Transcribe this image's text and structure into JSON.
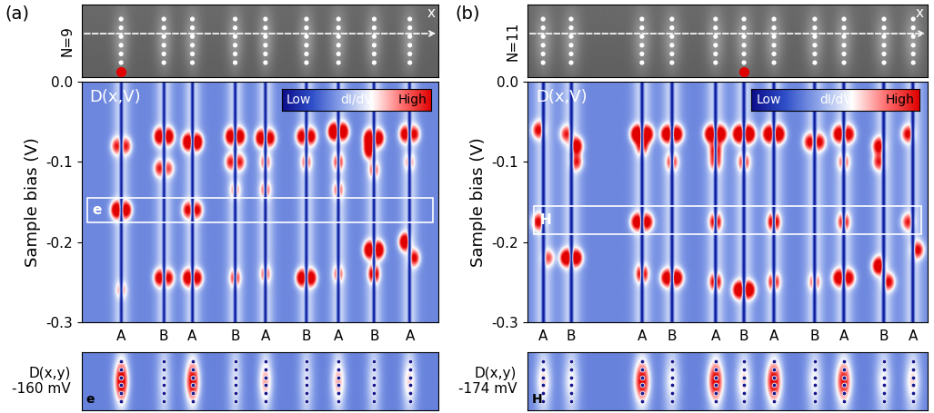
{
  "chart_data": [
    {
      "type": "heatmap",
      "panel": "(a)",
      "chain_count_label": "N=9",
      "x_label": "x",
      "heatmap_label": "D(x,V)",
      "ylabel": "Sample bias (V)",
      "ylim": [
        -0.3,
        0.0
      ],
      "yticks": [
        -0.3,
        -0.2,
        -0.1,
        0.0
      ],
      "xlim": [
        0,
        100
      ],
      "xticks": [
        {
          "value": 11,
          "label": "A"
        },
        {
          "value": 23,
          "label": "B"
        },
        {
          "value": 31,
          "label": "A"
        },
        {
          "value": 43,
          "label": "B"
        },
        {
          "value": 51.5,
          "label": "A"
        },
        {
          "value": 63,
          "label": "B"
        },
        {
          "value": 72,
          "label": "A"
        },
        {
          "value": 82,
          "label": "B"
        },
        {
          "value": 92,
          "label": "A"
        }
      ],
      "colorbar": {
        "low": "Low",
        "label": "dI/dV",
        "high": "High"
      },
      "clim": [
        0,
        1
      ],
      "background": 0.33,
      "peaks": [
        [
          9.5,
          -0.08,
          0.5
        ],
        [
          12.5,
          -0.08,
          0.5
        ],
        [
          9.5,
          -0.16,
          0.9
        ],
        [
          12.5,
          -0.16,
          0.8
        ],
        [
          11,
          -0.26,
          0.3
        ],
        [
          21.5,
          -0.068,
          0.8
        ],
        [
          24.5,
          -0.068,
          0.8
        ],
        [
          21.5,
          -0.108,
          0.5
        ],
        [
          24.5,
          -0.108,
          0.4
        ],
        [
          21.5,
          -0.245,
          0.7
        ],
        [
          24.5,
          -0.245,
          0.6
        ],
        [
          29.5,
          -0.075,
          0.9
        ],
        [
          32.5,
          -0.075,
          0.9
        ],
        [
          29.5,
          -0.16,
          0.6
        ],
        [
          32.5,
          -0.16,
          0.6
        ],
        [
          29.5,
          -0.245,
          0.8
        ],
        [
          32.5,
          -0.245,
          0.7
        ],
        [
          41.5,
          -0.068,
          0.8
        ],
        [
          44.5,
          -0.068,
          0.8
        ],
        [
          41.5,
          -0.1,
          0.5
        ],
        [
          44.5,
          -0.1,
          0.5
        ],
        [
          43,
          -0.135,
          0.3
        ],
        [
          43,
          -0.245,
          0.5
        ],
        [
          50,
          -0.07,
          0.8
        ],
        [
          53,
          -0.07,
          0.7
        ],
        [
          51.5,
          -0.1,
          0.4
        ],
        [
          51.5,
          -0.135,
          0.4
        ],
        [
          51.5,
          -0.24,
          0.4
        ],
        [
          61.5,
          -0.068,
          0.7
        ],
        [
          64.5,
          -0.068,
          0.7
        ],
        [
          63,
          -0.1,
          0.4
        ],
        [
          61.5,
          -0.245,
          0.8
        ],
        [
          64.5,
          -0.245,
          0.8
        ],
        [
          70.5,
          -0.062,
          1.0
        ],
        [
          73.5,
          -0.062,
          0.9
        ],
        [
          72,
          -0.1,
          0.5
        ],
        [
          72,
          -0.135,
          0.4
        ],
        [
          72,
          -0.24,
          0.4
        ],
        [
          80.5,
          -0.07,
          0.9
        ],
        [
          83.5,
          -0.07,
          0.8
        ],
        [
          80.5,
          -0.085,
          0.8
        ],
        [
          82,
          -0.11,
          0.4
        ],
        [
          80.5,
          -0.21,
          0.9
        ],
        [
          83.5,
          -0.21,
          0.9
        ],
        [
          82,
          -0.24,
          0.8
        ],
        [
          90.5,
          -0.065,
          0.7
        ],
        [
          93.5,
          -0.065,
          0.6
        ],
        [
          92,
          -0.1,
          0.3
        ],
        [
          90.5,
          -0.2,
          0.9
        ],
        [
          93.5,
          -0.22,
          0.6
        ]
      ],
      "box": {
        "label": "e",
        "bias_range": [
          -0.175,
          -0.145
        ]
      },
      "topography": {
        "atoms_per_chain": 6,
        "marker_chain": 0
      },
      "map": {
        "label": "D(x,y)",
        "bias_label": "-160 mV",
        "letter": "e",
        "intensities": [
          1.0,
          0.1,
          0.9,
          0.1,
          0.4,
          0.1,
          0.4,
          0.1,
          0.3
        ]
      }
    },
    {
      "type": "heatmap",
      "panel": "(b)",
      "chain_count_label": "N=11",
      "x_label": "x",
      "heatmap_label": "D(x,V)",
      "ylabel": "Sample bias (V)",
      "ylim": [
        -0.3,
        0.0
      ],
      "yticks": [
        -0.3,
        -0.2,
        -0.1,
        0.0
      ],
      "xlim": [
        0,
        100
      ],
      "xticks": [
        {
          "value": 3.9,
          "label": "A"
        },
        {
          "value": 10.9,
          "label": "B"
        },
        {
          "value": 28.6,
          "label": "A"
        },
        {
          "value": 36.1,
          "label": "B"
        },
        {
          "value": 47,
          "label": "A"
        },
        {
          "value": 54.1,
          "label": "B"
        },
        {
          "value": 61.6,
          "label": "A"
        },
        {
          "value": 71.8,
          "label": "B"
        },
        {
          "value": 79.1,
          "label": "A"
        },
        {
          "value": 89.1,
          "label": "B"
        },
        {
          "value": 96.4,
          "label": "A"
        }
      ],
      "colorbar": {
        "low": "Low",
        "label": "dI/dV",
        "high": "High"
      },
      "clim": [
        0,
        1
      ],
      "background": 0.33,
      "peaks": [
        [
          2.5,
          -0.06,
          0.6
        ],
        [
          2.5,
          -0.175,
          0.6
        ],
        [
          5.3,
          -0.22,
          0.4
        ],
        [
          9.5,
          -0.065,
          0.5
        ],
        [
          12.3,
          -0.08,
          0.8
        ],
        [
          12.3,
          -0.1,
          0.5
        ],
        [
          9.5,
          -0.22,
          0.9
        ],
        [
          12.3,
          -0.22,
          0.8
        ],
        [
          27.2,
          -0.065,
          1.0
        ],
        [
          30,
          -0.065,
          0.9
        ],
        [
          28.6,
          -0.08,
          0.6
        ],
        [
          27.2,
          -0.175,
          0.8
        ],
        [
          30,
          -0.175,
          0.7
        ],
        [
          28.6,
          -0.24,
          0.7
        ],
        [
          34.7,
          -0.065,
          0.9
        ],
        [
          37.5,
          -0.065,
          0.8
        ],
        [
          36.1,
          -0.1,
          0.5
        ],
        [
          34.7,
          -0.245,
          0.8
        ],
        [
          37.5,
          -0.245,
          0.8
        ],
        [
          45.6,
          -0.065,
          0.9
        ],
        [
          48.4,
          -0.065,
          0.9
        ],
        [
          47,
          -0.085,
          0.6
        ],
        [
          47,
          -0.1,
          0.5
        ],
        [
          47,
          -0.175,
          0.7
        ],
        [
          47,
          -0.25,
          0.7
        ],
        [
          52.7,
          -0.065,
          1.0
        ],
        [
          55.5,
          -0.065,
          1.0
        ],
        [
          54.1,
          -0.1,
          0.5
        ],
        [
          52.7,
          -0.26,
          0.9
        ],
        [
          55.5,
          -0.26,
          0.9
        ],
        [
          60.2,
          -0.065,
          0.9
        ],
        [
          63,
          -0.065,
          0.9
        ],
        [
          61.6,
          -0.175,
          0.8
        ],
        [
          61.6,
          -0.25,
          0.6
        ],
        [
          70.4,
          -0.075,
          0.6
        ],
        [
          73.2,
          -0.075,
          0.6
        ],
        [
          71.8,
          -0.25,
          0.4
        ],
        [
          77.7,
          -0.065,
          0.8
        ],
        [
          80.5,
          -0.065,
          0.7
        ],
        [
          79.1,
          -0.1,
          0.4
        ],
        [
          79.1,
          -0.175,
          0.6
        ],
        [
          77.7,
          -0.245,
          0.8
        ],
        [
          80.5,
          -0.245,
          0.7
        ],
        [
          87.7,
          -0.08,
          0.7
        ],
        [
          87.7,
          -0.1,
          0.5
        ],
        [
          87.7,
          -0.23,
          0.9
        ],
        [
          90.5,
          -0.25,
          0.6
        ],
        [
          95,
          -0.065,
          0.6
        ],
        [
          95,
          -0.175,
          0.5
        ],
        [
          97.8,
          -0.21,
          0.6
        ]
      ],
      "box": {
        "label": "H",
        "bias_range": [
          -0.19,
          -0.155
        ]
      },
      "topography": {
        "atoms_per_chain": 6,
        "marker_chain": 5
      },
      "map": {
        "label": "D(x,y)",
        "bias_label": "-174 mV",
        "letter": "H",
        "intensities": [
          0.3,
          0.2,
          0.9,
          0.2,
          0.9,
          0.3,
          0.9,
          0.2,
          0.8,
          0.2,
          0.3
        ]
      }
    }
  ]
}
